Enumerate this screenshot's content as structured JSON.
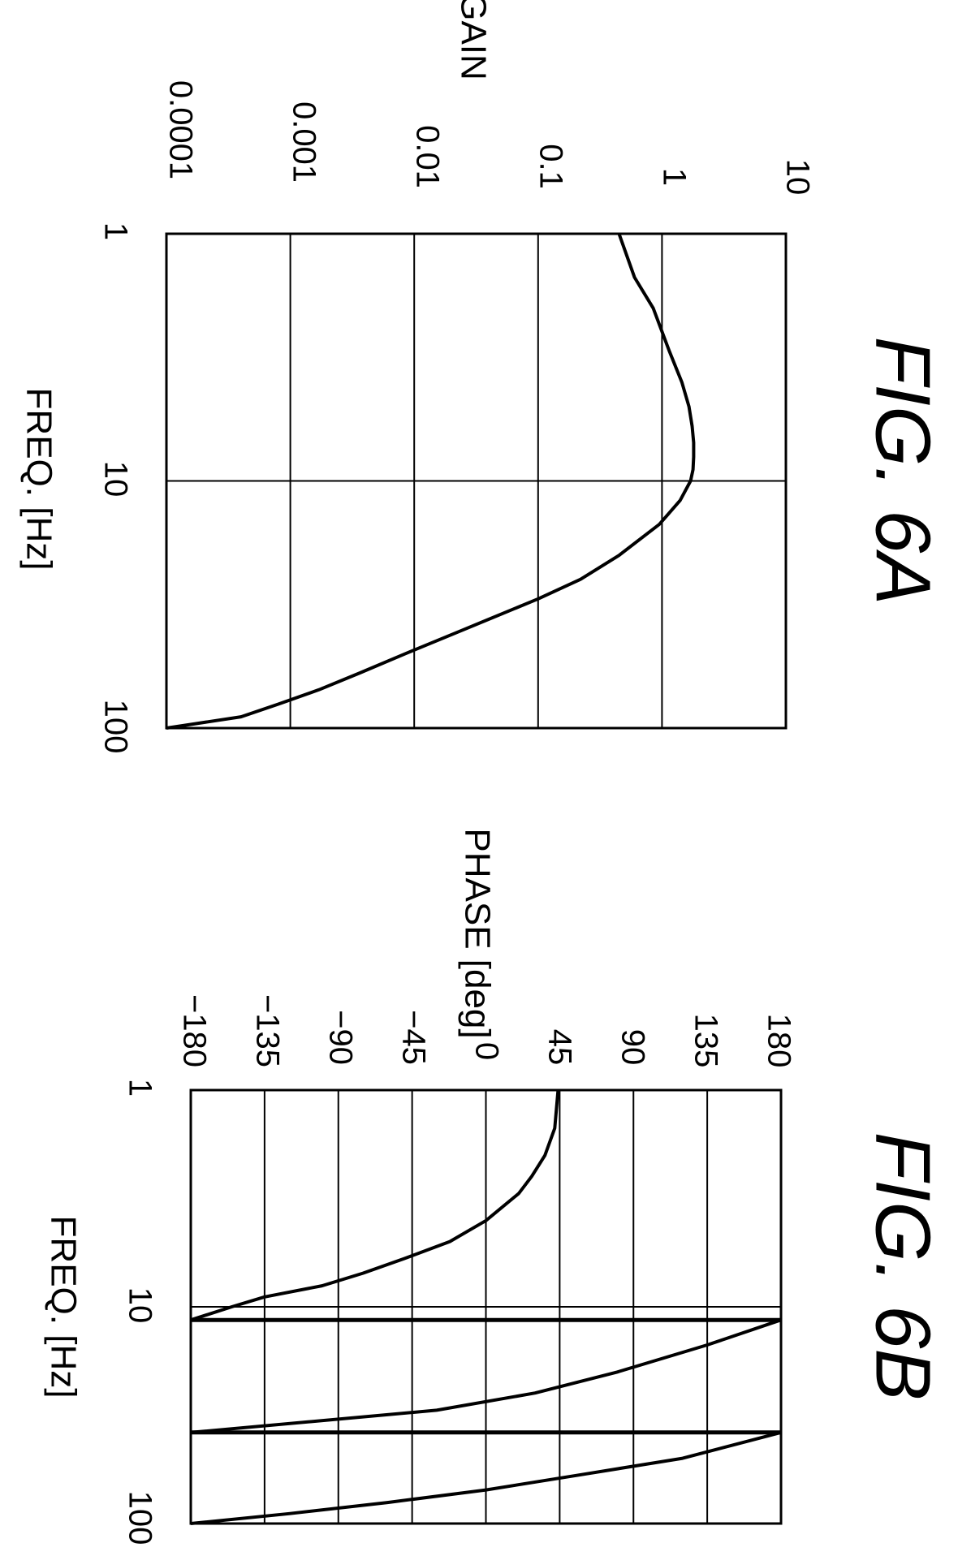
{
  "chart_data": [
    {
      "type": "line",
      "figure_label": "FIG. 6A",
      "title": "",
      "xlabel": "FREQ. [Hz]",
      "ylabel": "GAIN",
      "x_scale": "log",
      "y_scale": "log",
      "xlim": [
        1,
        100
      ],
      "ylim": [
        0.0001,
        10
      ],
      "x_ticks": [
        "1",
        "10",
        "100"
      ],
      "y_ticks": [
        "0.0001",
        "0.001",
        "0.01",
        "0.1",
        "1",
        "10"
      ],
      "grid": true,
      "series": [
        {
          "x": [
            1,
            1.5,
            2,
            3,
            4,
            5,
            6,
            7,
            8,
            9,
            10,
            12,
            15,
            20,
            25,
            30,
            40,
            50,
            60,
            70,
            80,
            90,
            100
          ],
          "y": [
            0.45,
            0.6,
            0.85,
            1.15,
            1.45,
            1.65,
            1.75,
            1.8,
            1.8,
            1.78,
            1.7,
            1.4,
            0.95,
            0.45,
            0.22,
            0.1,
            0.025,
            0.0085,
            0.0036,
            0.0017,
            0.0008,
            0.0004,
            0.0001
          ]
        }
      ]
    },
    {
      "type": "line",
      "figure_label": "FIG. 6B",
      "title": "",
      "xlabel": "FREQ. [Hz]",
      "ylabel": "PHASE [deg]",
      "x_scale": "log",
      "y_scale": "linear",
      "xlim": [
        1,
        100
      ],
      "ylim": [
        -180,
        180
      ],
      "x_ticks": [
        "1",
        "10",
        "100"
      ],
      "y_ticks": [
        "−180",
        "−135",
        "−90",
        "−45",
        "0",
        "45",
        "90",
        "135",
        "180"
      ],
      "grid": true,
      "series": [
        {
          "x": [
            1,
            1.5,
            2,
            2.5,
            3,
            4,
            5,
            6,
            7,
            8,
            9,
            10,
            11.5,
            11.5,
            15,
            20,
            25,
            30,
            38,
            38,
            50,
            60,
            70,
            80,
            90,
            100
          ],
          "y": [
            44,
            42,
            36,
            28,
            20,
            0,
            -22,
            -50,
            -75,
            -100,
            -135,
            -155,
            -180,
            180,
            135,
            80,
            30,
            -30,
            -180,
            180,
            120,
            55,
            0,
            -60,
            -120,
            -180
          ]
        }
      ]
    }
  ]
}
